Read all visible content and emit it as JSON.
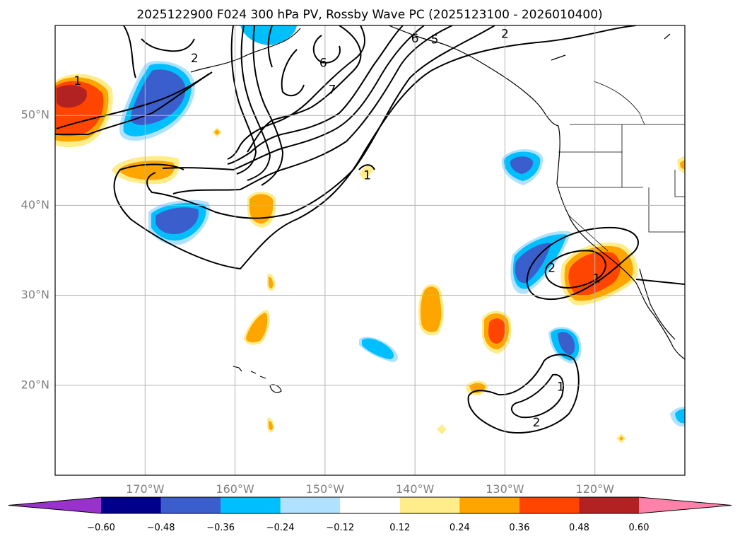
{
  "chart_data": {
    "type": "map",
    "title": "2025122900 F024 300 hPa PV, Rossby Wave PC (2025123100 - 2026010400)",
    "lon_range": [
      -180,
      -110
    ],
    "lat_range": [
      10,
      60
    ],
    "lon_ticks": [
      -170,
      -160,
      -150,
      -140,
      -130,
      -120
    ],
    "lon_tick_labels": [
      "170°W",
      "160°W",
      "150°W",
      "140°W",
      "130°W",
      "120°W"
    ],
    "lat_ticks": [
      20,
      30,
      40,
      50
    ],
    "lat_tick_labels": [
      "20°N",
      "30°N",
      "40°N",
      "50°N"
    ],
    "grid": true,
    "colorbar": {
      "levels": [
        -0.6,
        -0.48,
        -0.36,
        -0.24,
        -0.12,
        0.12,
        0.24,
        0.36,
        0.48,
        0.6
      ],
      "tick_labels": [
        "−0.60",
        "−0.48",
        "−0.36",
        "−0.24",
        "−0.12",
        "0.12",
        "0.24",
        "0.36",
        "0.48",
        "0.60"
      ],
      "colors": [
        "#9932cc",
        "#00008b",
        "#3a5fcd",
        "#00bfff",
        "#b0e2ff",
        "#ffffff",
        "#ffec8b",
        "#ffa500",
        "#ff4500",
        "#b22222",
        "#ff82ab"
      ],
      "extend": "both"
    },
    "pv_contour_levels": [
      1,
      2,
      3,
      4,
      5,
      6,
      7
    ],
    "contour_labels": [
      {
        "text": "1",
        "lon": -177.5,
        "lat": 53.8
      },
      {
        "text": "2",
        "lon": -164.5,
        "lat": 56.3
      },
      {
        "text": "6",
        "lon": -150.2,
        "lat": 55.8
      },
      {
        "text": "7",
        "lon": -149.2,
        "lat": 52.8
      },
      {
        "text": "6",
        "lon": -140.0,
        "lat": 58.5
      },
      {
        "text": "5",
        "lon": -137.8,
        "lat": 58.4
      },
      {
        "text": "2",
        "lon": -130.0,
        "lat": 59.0
      },
      {
        "text": "1",
        "lon": -145.3,
        "lat": 43.3
      },
      {
        "text": "2",
        "lon": -124.8,
        "lat": 33.0
      },
      {
        "text": "1",
        "lon": -119.8,
        "lat": 31.8
      },
      {
        "text": "1",
        "lon": -123.8,
        "lat": 19.8
      },
      {
        "text": "2",
        "lon": -126.5,
        "lat": 15.8
      }
    ],
    "anomaly_features": [
      {
        "sign": "positive",
        "max_value": 0.48,
        "lon": -177.5,
        "lat": 50.5
      },
      {
        "sign": "negative",
        "max_value": -0.36,
        "lon": -167.5,
        "lat": 51.5
      },
      {
        "sign": "positive",
        "max_value": 0.24,
        "lon": -168.0,
        "lat": 44.0
      },
      {
        "sign": "negative",
        "max_value": -0.36,
        "lon": -166.0,
        "lat": 38.0
      },
      {
        "sign": "positive",
        "max_value": 0.24,
        "lon": -157.0,
        "lat": 40.0
      },
      {
        "sign": "negative",
        "max_value": -0.36,
        "lon": -155.5,
        "lat": 59.0
      },
      {
        "sign": "negative",
        "max_value": -0.36,
        "lon": -127.5,
        "lat": 44.5
      },
      {
        "sign": "negative",
        "max_value": -0.36,
        "lon": -126.5,
        "lat": 34.5
      },
      {
        "sign": "positive",
        "max_value": 0.48,
        "lon": -120.0,
        "lat": 33.0
      },
      {
        "sign": "positive",
        "max_value": 0.24,
        "lon": -138.5,
        "lat": 28.5
      },
      {
        "sign": "positive",
        "max_value": 0.36,
        "lon": -131.0,
        "lat": 26.0
      },
      {
        "sign": "negative",
        "max_value": -0.36,
        "lon": -123.0,
        "lat": 24.5
      },
      {
        "sign": "negative",
        "max_value": -0.24,
        "lon": -144.5,
        "lat": 24.0
      },
      {
        "sign": "positive",
        "max_value": 0.24,
        "lon": -158.0,
        "lat": 26.0
      },
      {
        "sign": "positive",
        "max_value": 0.24,
        "lon": -133.0,
        "lat": 20.0
      }
    ]
  }
}
